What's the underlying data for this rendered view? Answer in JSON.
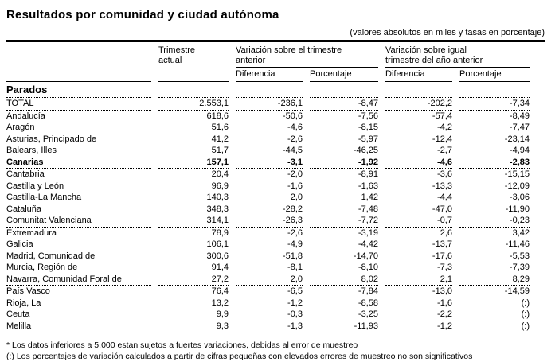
{
  "page": {
    "title": "Resultados por comunidad y ciudad autónoma",
    "subtitle": "(valores absolutos en miles y tasas en porcentaje)"
  },
  "table": {
    "section_title": "Parados",
    "headers": {
      "current_quarter": "Trimestre actual",
      "vs_previous_quarter": "Variación sobre el trimestre anterior",
      "vs_year_ago_quarter": "Variación sobre igual trimestre del año anterior",
      "difference": "Diferencia",
      "percentage": "Porcentaje"
    },
    "rows": [
      {
        "name": "TOTAL",
        "q": "2.553,1",
        "d1": "-236,1",
        "p1": "-8,47",
        "d2": "-202,2",
        "p2": "-7,34"
      },
      {
        "name": "Andalucía",
        "q": "618,6",
        "d1": "-50,6",
        "p1": "-7,56",
        "d2": "-57,4",
        "p2": "-8,49"
      },
      {
        "name": "Aragón",
        "q": "51,6",
        "d1": "-4,6",
        "p1": "-8,15",
        "d2": "-4,2",
        "p2": "-7,47"
      },
      {
        "name": "Asturias, Principado de",
        "q": "41,2",
        "d1": "-2,6",
        "p1": "-5,97",
        "d2": "-12,4",
        "p2": "-23,14"
      },
      {
        "name": "Balears, Illes",
        "q": "51,7",
        "d1": "-44,5",
        "p1": "-46,25",
        "d2": "-2,7",
        "p2": "-4,94"
      },
      {
        "name": "Canarias",
        "q": "157,1",
        "d1": "-3,1",
        "p1": "-1,92",
        "d2": "-4,6",
        "p2": "-2,83"
      },
      {
        "name": "Cantabria",
        "q": "20,4",
        "d1": "-2,0",
        "p1": "-8,91",
        "d2": "-3,6",
        "p2": "-15,15"
      },
      {
        "name": "Castilla y León",
        "q": "96,9",
        "d1": "-1,6",
        "p1": "-1,63",
        "d2": "-13,3",
        "p2": "-12,09"
      },
      {
        "name": "Castilla-La Mancha",
        "q": "140,3",
        "d1": "2,0",
        "p1": "1,42",
        "d2": "-4,4",
        "p2": "-3,06"
      },
      {
        "name": "Cataluña",
        "q": "348,3",
        "d1": "-28,2",
        "p1": "-7,48",
        "d2": "-47,0",
        "p2": "-11,90"
      },
      {
        "name": "Comunitat Valenciana",
        "q": "314,1",
        "d1": "-26,3",
        "p1": "-7,72",
        "d2": "-0,7",
        "p2": "-0,23"
      },
      {
        "name": "Extremadura",
        "q": "78,9",
        "d1": "-2,6",
        "p1": "-3,19",
        "d2": "2,6",
        "p2": "3,42"
      },
      {
        "name": "Galicia",
        "q": "106,1",
        "d1": "-4,9",
        "p1": "-4,42",
        "d2": "-13,7",
        "p2": "-11,46"
      },
      {
        "name": "Madrid, Comunidad de",
        "q": "300,6",
        "d1": "-51,8",
        "p1": "-14,70",
        "d2": "-17,6",
        "p2": "-5,53"
      },
      {
        "name": "Murcia, Región de",
        "q": "91,4",
        "d1": "-8,1",
        "p1": "-8,10",
        "d2": "-7,3",
        "p2": "-7,39"
      },
      {
        "name": "Navarra, Comunidad Foral de",
        "q": "27,2",
        "d1": "2,0",
        "p1": "8,02",
        "d2": "2,1",
        "p2": "8,29"
      },
      {
        "name": "País Vasco",
        "q": "76,4",
        "d1": "-6,5",
        "p1": "-7,84",
        "d2": "-13,0",
        "p2": "-14,59"
      },
      {
        "name": "Rioja, La",
        "q": "13,2",
        "d1": "-1,2",
        "p1": "-8,58",
        "d2": "-1,6",
        "p2": "(:)"
      },
      {
        "name": "Ceuta",
        "q": "9,9",
        "d1": "-0,3",
        "p1": "-3,25",
        "d2": "-2,2",
        "p2": "(:)"
      },
      {
        "name": "Melilla",
        "q": "9,3",
        "d1": "-1,3",
        "p1": "-11,93",
        "d2": "-1,2",
        "p2": "(:)"
      }
    ]
  },
  "footnotes": {
    "note1": "* Los datos inferiores a 5.000 estan sujetos a fuertes variaciones, debidas al error de muestreo",
    "note2": "(:) Los porcentajes de variación calculados a partir de cifras pequeñas con elevados errores de muestreo no son significativos"
  }
}
